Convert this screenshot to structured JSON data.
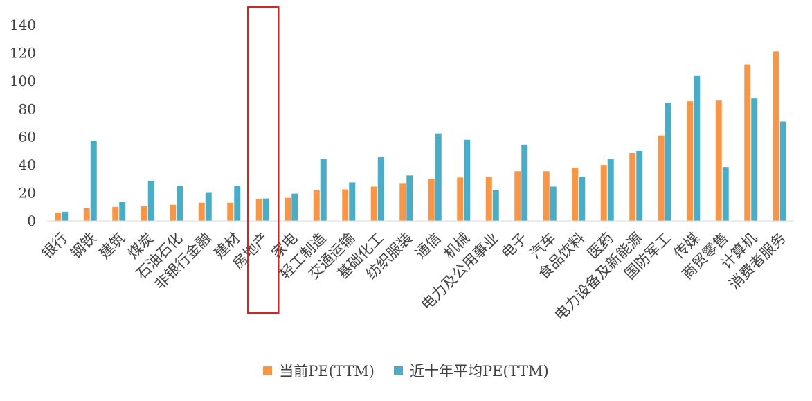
{
  "chart_data": {
    "type": "bar",
    "categories": [
      "银行",
      "钢铁",
      "建筑",
      "煤炭",
      "石油石化",
      "非银行金融",
      "建材",
      "房地产",
      "家电",
      "轻工制造",
      "交通运输",
      "基础化工",
      "纺织服装",
      "通信",
      "机械",
      "电力及公用事业",
      "电子",
      "汽车",
      "食品饮料",
      "医药",
      "电力设备及新能源",
      "国防军工",
      "传媒",
      "商贸零售",
      "计算机",
      "消费者服务"
    ],
    "series": [
      {
        "name": "当前PE(TTM)",
        "color": "#F79646",
        "values": [
          5.5,
          9,
          10,
          10.5,
          11.5,
          13,
          13,
          15.5,
          16.5,
          22,
          22.5,
          24.5,
          27,
          30,
          31,
          31.5,
          35.5,
          35.5,
          38,
          40,
          48.5,
          61,
          85.5,
          86,
          111.5,
          121
        ]
      },
      {
        "name": "近十年平均PE(TTM)",
        "color": "#4BACC6",
        "values": [
          6.5,
          57,
          13.5,
          28.5,
          25,
          20.5,
          25,
          16,
          19.5,
          44.5,
          27.5,
          45.5,
          32.5,
          62.5,
          58,
          22,
          54.5,
          24.5,
          31.5,
          44,
          50,
          84.5,
          103.5,
          38.5,
          87.5,
          71
        ]
      }
    ],
    "yticks": [
      "0",
      "20",
      "40",
      "60",
      "80",
      "100",
      "120",
      "140"
    ],
    "ylim": [
      0,
      140
    ],
    "grid": false,
    "legend_position": "bottom",
    "highlight": {
      "category": "房地产",
      "color": "#E0201B"
    }
  }
}
